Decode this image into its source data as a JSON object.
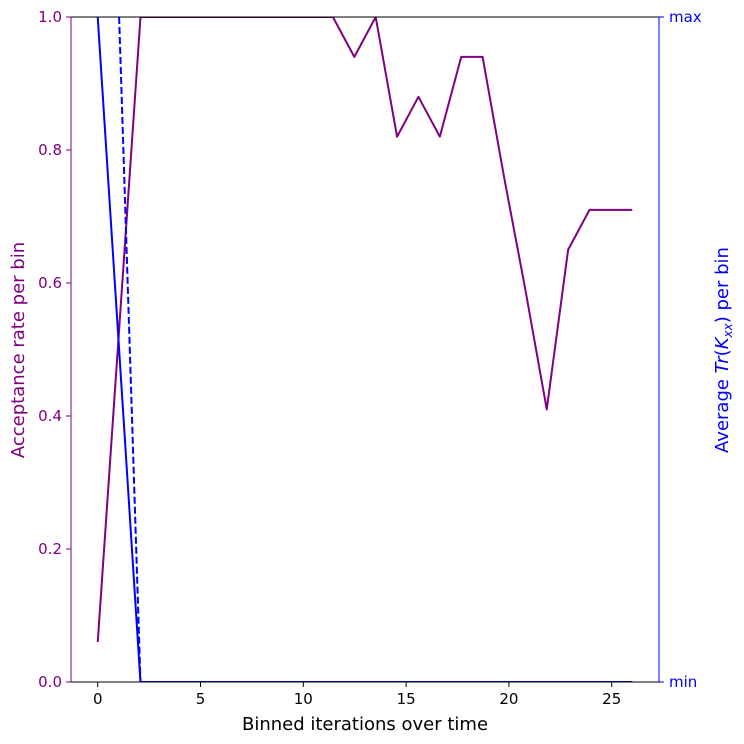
{
  "chart_data": {
    "type": "line",
    "title": "",
    "xlabel": "Binned iterations over time",
    "ylabel_left": "Acceptance rate per bin",
    "ylabel_right": "Average Tr(K_xx) per bin",
    "ylabel_right_parts": {
      "prefix": "Average ",
      "symbol": "Tr",
      "open": "(",
      "main": "K",
      "sub": "xx",
      "close": ")",
      "suffix": " per bin"
    },
    "xlim": [
      -1.3,
      27.3
    ],
    "ylim_left": [
      0,
      1
    ],
    "ylim_right": [
      0,
      1
    ],
    "x_ticks": [
      0,
      5,
      10,
      15,
      20,
      25
    ],
    "y_ticks_left": [
      0.0,
      0.2,
      0.4,
      0.6,
      0.8,
      1.0
    ],
    "y_ticks_right": [
      {
        "value": 0,
        "label": "min"
      },
      {
        "value": 1,
        "label": "max"
      }
    ],
    "colors": {
      "left_axis": "#800080",
      "right_axis": "#0000ff"
    },
    "series": [
      {
        "axis": "left",
        "style": "solid",
        "color": "#800080",
        "x": [
          0,
          1.04,
          2.08,
          3.12,
          4.16,
          5.2,
          6.24,
          7.28,
          8.32,
          9.36,
          10.4,
          11.44,
          12.48,
          13.52,
          14.56,
          15.6,
          16.64,
          17.68,
          18.72,
          19.76,
          20.8,
          21.84,
          22.88,
          23.92,
          24.96,
          26
        ],
        "y": [
          0.06,
          0.53,
          1.0,
          1.0,
          1.0,
          1.0,
          1.0,
          1.0,
          1.0,
          1.0,
          1.0,
          1.0,
          0.94,
          1.0,
          0.82,
          0.88,
          0.82,
          0.94,
          0.94,
          0.76,
          0.59,
          0.41,
          0.65,
          0.71,
          0.71,
          0.71
        ]
      },
      {
        "axis": "right",
        "style": "solid",
        "color": "#0000ff",
        "x": [
          0,
          2.08,
          26
        ],
        "y": [
          1.0,
          0.0,
          0.0
        ]
      },
      {
        "axis": "right",
        "style": "dashed",
        "color": "#0000ff",
        "x": [
          1.04,
          2.08,
          26
        ],
        "y": [
          1.0,
          0.0,
          0.0
        ]
      }
    ]
  }
}
